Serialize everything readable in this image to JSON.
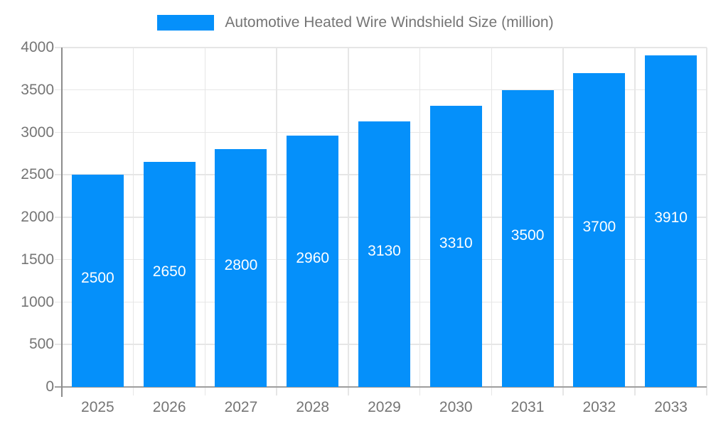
{
  "legend": {
    "label": "Automotive Heated Wire Windshield Size (million)"
  },
  "chart_data": {
    "type": "bar",
    "title": "Automotive Heated Wire Windshield Size (million)",
    "categories": [
      "2025",
      "2026",
      "2027",
      "2028",
      "2029",
      "2030",
      "2031",
      "2032",
      "2033"
    ],
    "values": [
      2500,
      2650,
      2800,
      2960,
      3130,
      3310,
      3500,
      3700,
      3910
    ],
    "series": [
      {
        "name": "Automotive Heated Wire Windshield Size (million)",
        "values": [
          2500,
          2650,
          2800,
          2960,
          3130,
          3310,
          3500,
          3700,
          3910
        ]
      }
    ],
    "xlabel": "",
    "ylabel": "",
    "ylim": [
      0,
      4000
    ],
    "ytick_step": 500,
    "ytick_labels": [
      "0",
      "500",
      "1000",
      "1500",
      "2000",
      "2500",
      "3000",
      "3500",
      "4000"
    ],
    "grid": true,
    "legend_position": "top",
    "value_labels": "inside-center"
  },
  "colors": {
    "bar": "#0590fa",
    "grid": "#e6e6e6",
    "axis_line": "#8c8c8c",
    "baseline": "#9e9e9e",
    "tick_text": "#757575",
    "bar_label_text": "#ffffff",
    "background": "#ffffff"
  }
}
